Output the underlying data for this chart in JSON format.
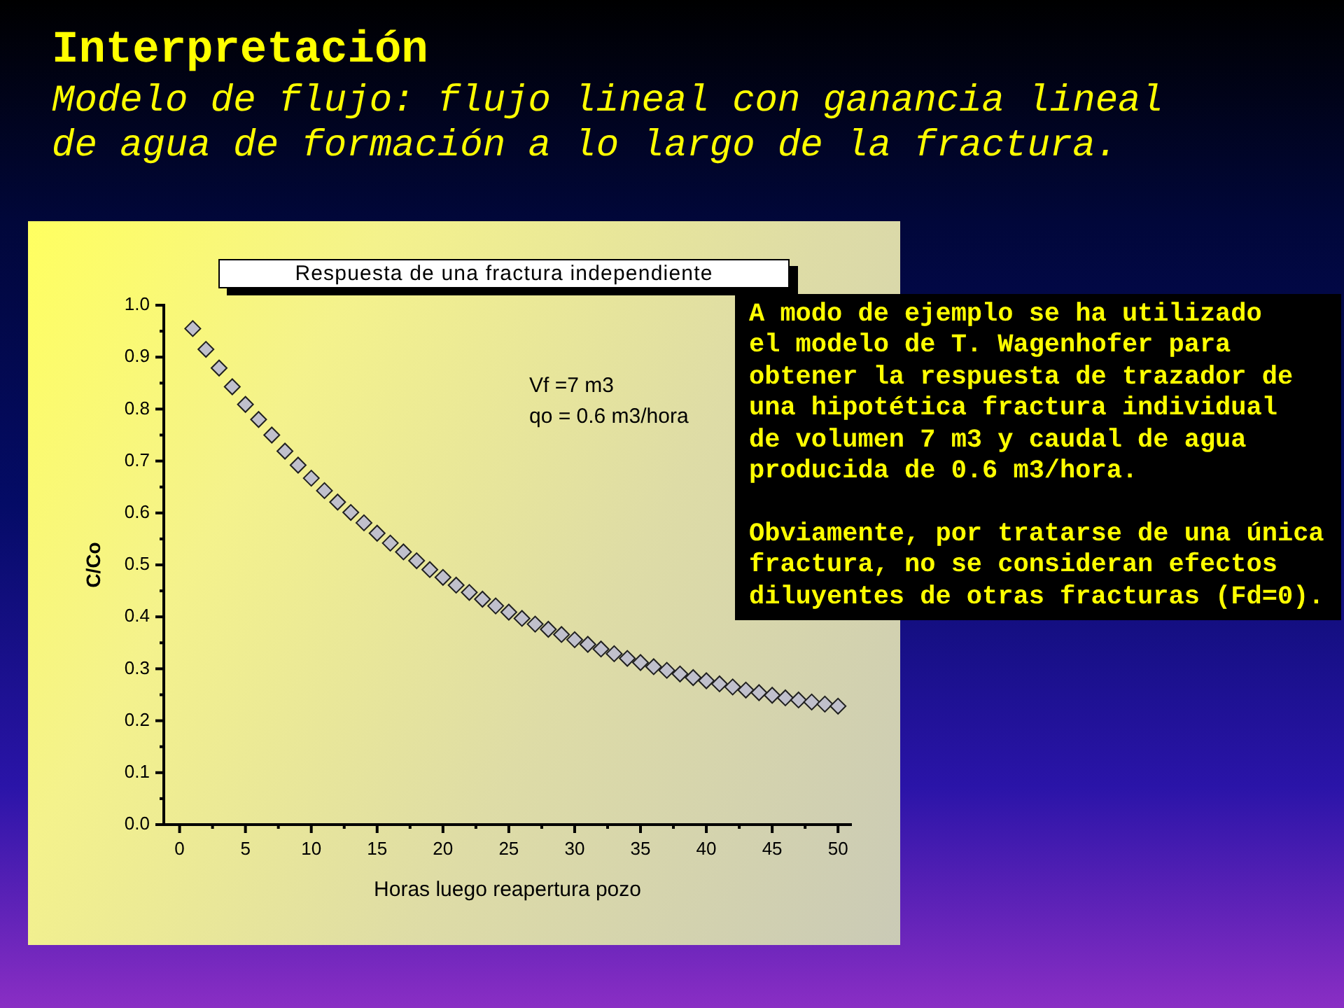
{
  "chart_data": {
    "type": "scatter",
    "title": "Interpretación",
    "subtitle": "Modelo de flujo: flujo lineal con ganancia lineal de agua de formación a lo largo de la fractura.",
    "xlabel": "Horas luego reapertura pozo",
    "ylabel": "C/Co",
    "annotations": [
      "Respuesta de una fractura independiente",
      "Vf =7 m3\nqo = 0.6 m3/hora",
      "A modo de ejemplo se ha utilizado\nel modelo de T. Wagenhofer para\nobtener la respuesta de trazador de\nuna hipotética fractura individual\nde volumen 7 m3 y caudal de agua\nproducida de 0.6 m3/hora.\n\nObviamente, por tratarse de una única\nfractura, no se consideran efectos\ndiluyentes de otras fracturas (Fd=0)."
    ],
    "x": [
      1,
      2,
      3,
      4,
      5,
      6,
      7,
      8,
      9,
      10,
      11,
      12,
      13,
      14,
      15,
      16,
      17,
      18,
      19,
      20,
      21,
      22,
      23,
      24,
      25,
      26,
      27,
      28,
      29,
      30,
      31,
      32,
      33,
      34,
      35,
      36,
      37,
      38,
      39,
      40,
      41,
      42,
      43,
      44,
      45,
      46,
      47,
      48,
      49,
      50
    ],
    "values": [
      0.955,
      0.915,
      0.879,
      0.843,
      0.809,
      0.78,
      0.75,
      0.719,
      0.692,
      0.667,
      0.643,
      0.621,
      0.601,
      0.581,
      0.561,
      0.542,
      0.525,
      0.508,
      0.491,
      0.476,
      0.461,
      0.447,
      0.434,
      0.421,
      0.409,
      0.397,
      0.386,
      0.376,
      0.366,
      0.356,
      0.347,
      0.338,
      0.329,
      0.32,
      0.312,
      0.304,
      0.297,
      0.29,
      0.283,
      0.277,
      0.271,
      0.265,
      0.259,
      0.254,
      0.249,
      0.244,
      0.24,
      0.236,
      0.232,
      0.228
    ],
    "color": "#c0c0cc",
    "marker": "diamond",
    "xlim": [
      -1.2,
      51
    ],
    "ylim": [
      0,
      1
    ],
    "xticks": [
      0,
      {
        "value": 2.5,
        "label": null
      },
      5,
      {
        "value": 7.5,
        "label": null
      },
      10,
      {
        "value": 12.5,
        "label": null
      },
      15,
      {
        "value": 17.5,
        "label": null
      },
      20,
      {
        "value": 22.5,
        "label": null
      },
      25,
      {
        "value": 27.5,
        "label": null
      },
      30,
      {
        "value": 32.5,
        "label": null
      },
      35,
      {
        "value": 37.5,
        "label": null
      },
      40,
      {
        "value": 42.5,
        "label": null
      },
      45,
      {
        "value": 47.5,
        "label": null
      },
      50
    ],
    "yticks": [
      {
        "value": 0,
        "label": "0.0"
      },
      {
        "value": 0.05,
        "label": null
      },
      {
        "value": 0.1,
        "label": "0.1"
      },
      {
        "value": 0.15,
        "label": null
      },
      {
        "value": 0.2,
        "label": "0.2"
      },
      {
        "value": 0.25,
        "label": null
      },
      {
        "value": 0.3,
        "label": "0.3"
      },
      {
        "value": 0.35,
        "label": null
      },
      {
        "value": 0.4,
        "label": "0.4"
      },
      {
        "value": 0.45,
        "label": null
      },
      {
        "value": 0.5,
        "label": "0.5"
      },
      {
        "value": 0.55,
        "label": null
      },
      {
        "value": 0.6,
        "label": "0.6"
      },
      {
        "value": 0.65,
        "label": null
      },
      {
        "value": 0.7,
        "label": "0.7"
      },
      {
        "value": 0.75,
        "label": null
      },
      {
        "value": 0.8,
        "label": "0.8"
      },
      {
        "value": 0.85,
        "label": null
      },
      {
        "value": 0.9,
        "label": "0.9"
      },
      {
        "value": 0.95,
        "label": null
      },
      {
        "value": 1,
        "label": "1.0"
      }
    ]
  }
}
